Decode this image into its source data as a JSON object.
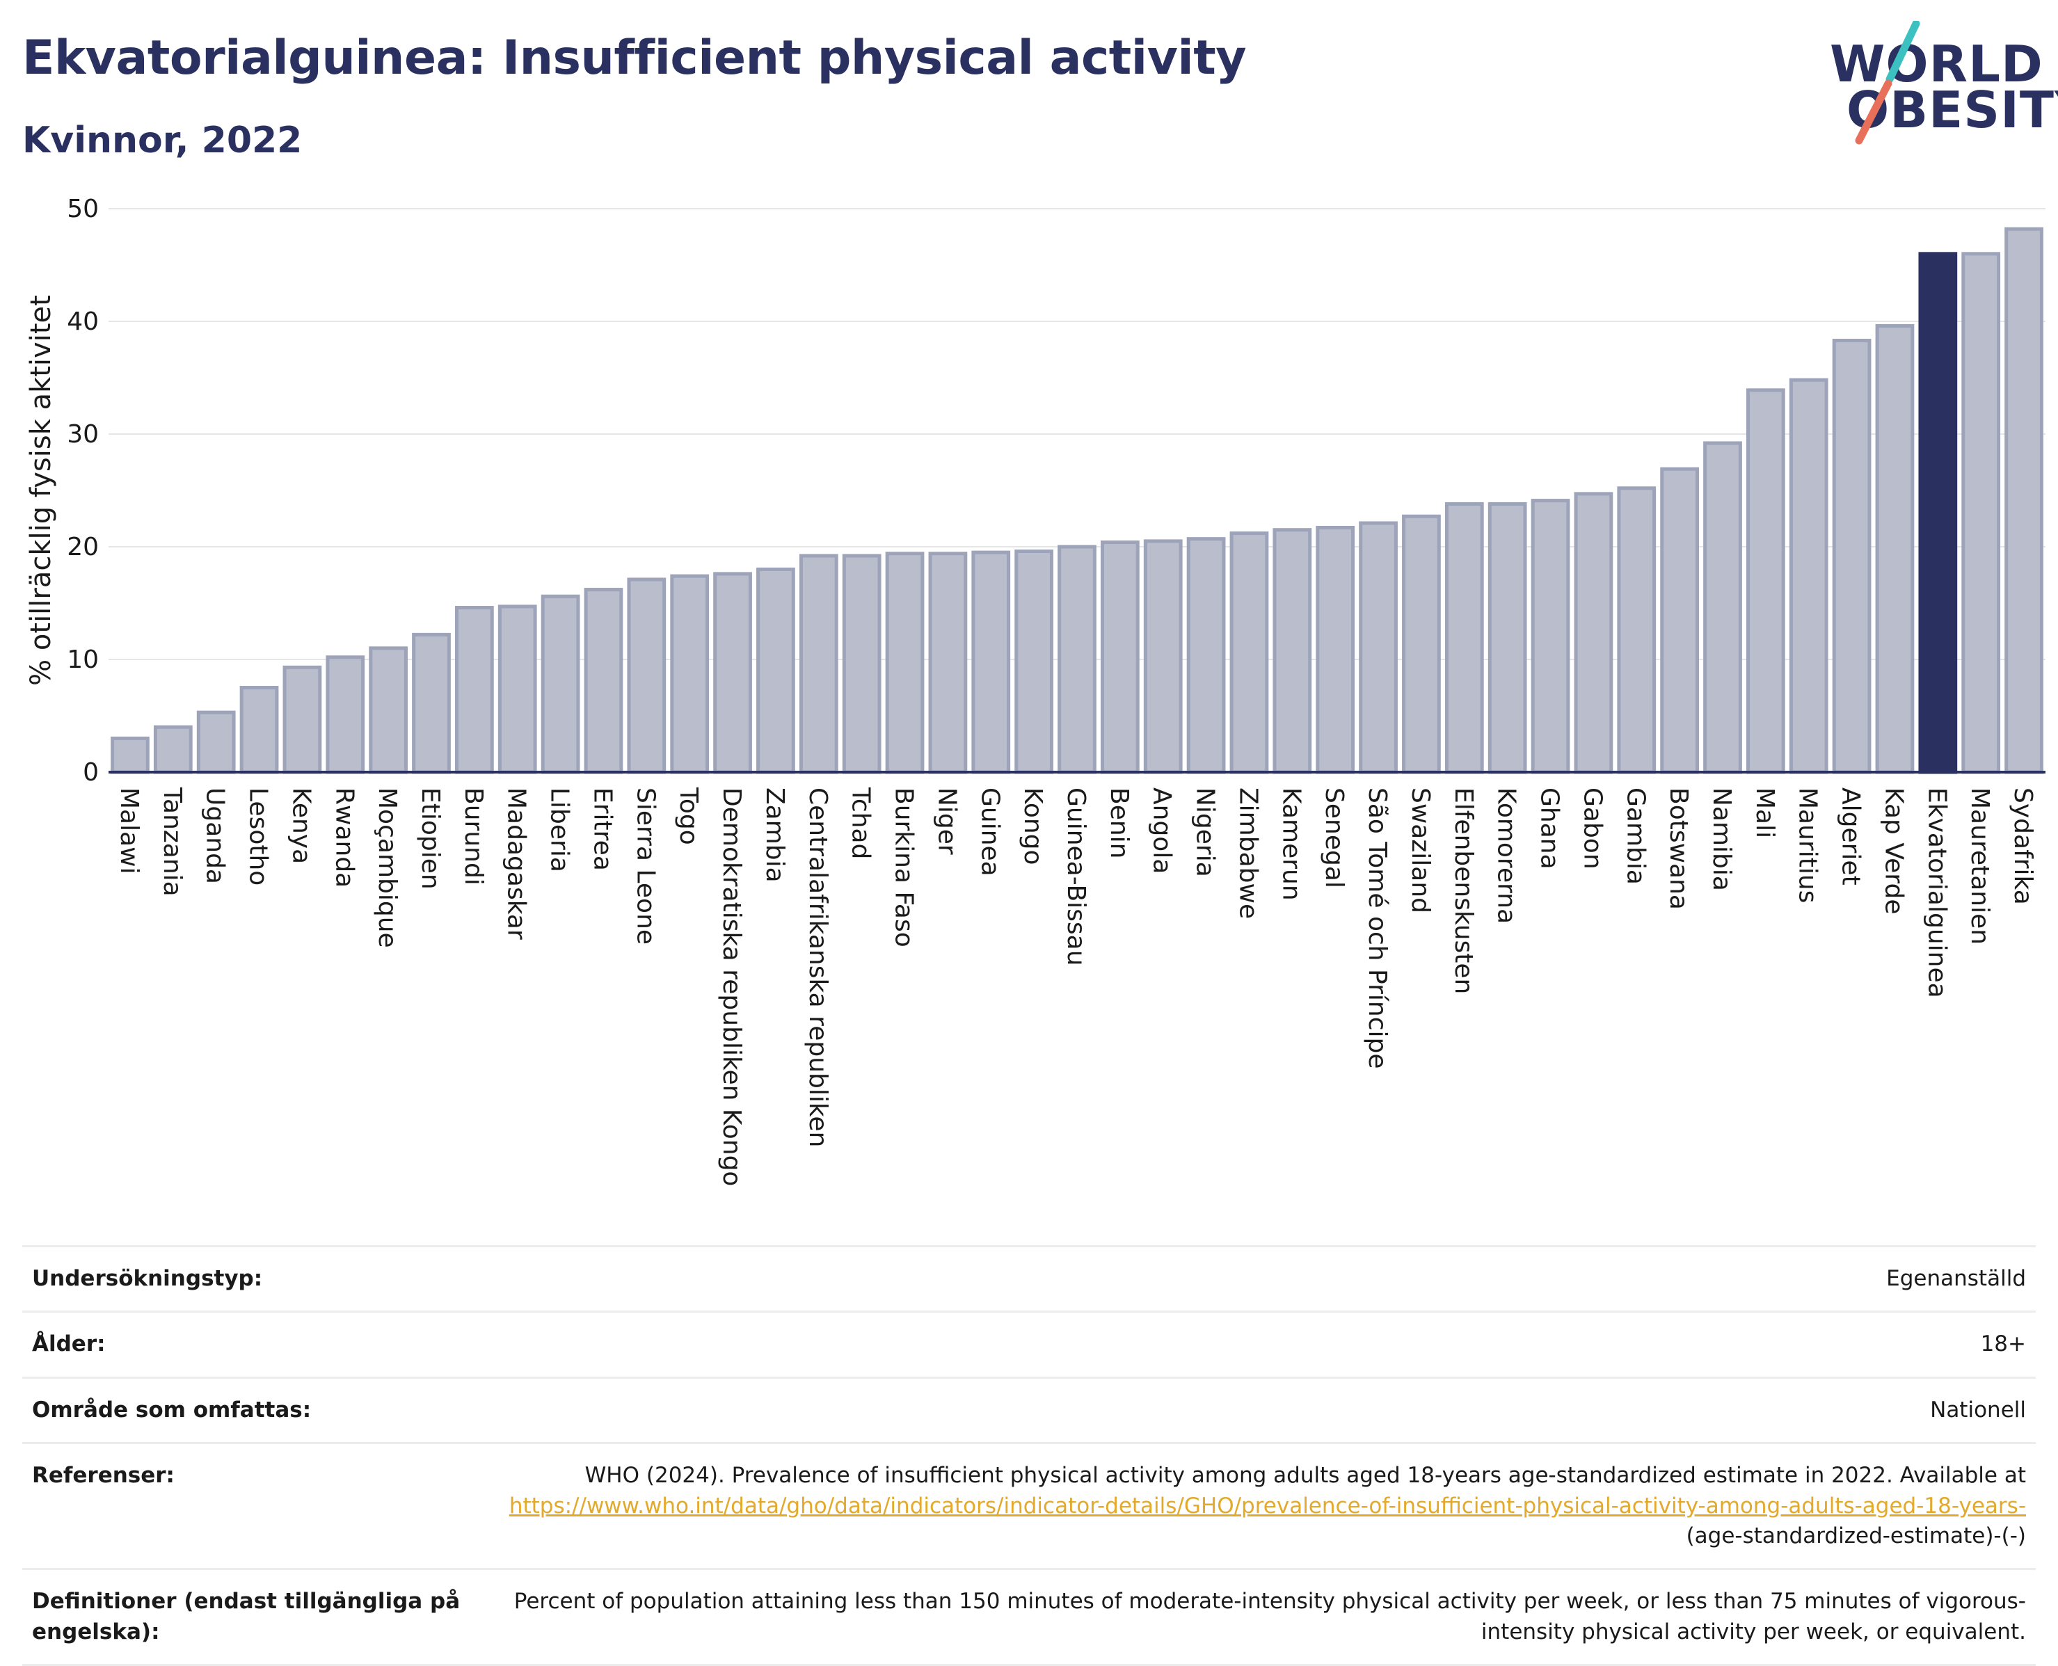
{
  "header": {
    "title": "Ekvatorialguinea: Insufficient physical activity",
    "subtitle": "Kvinnor, 2022"
  },
  "logo": {
    "line1": "WORLD",
    "line2": "OBESITY",
    "colors": {
      "text": "#2a3160",
      "slash_top": "#3cc0c0",
      "slash_bottom": "#e8705a"
    }
  },
  "chart_data": {
    "type": "bar",
    "title": "Ekvatorialguinea: Insufficient physical activity",
    "subtitle": "Kvinnor, 2022",
    "xlabel": "",
    "ylabel": "% otillräcklig fysisk aktivitet",
    "ylim": [
      0,
      50
    ],
    "yticks": [
      0,
      10,
      20,
      30,
      40,
      50
    ],
    "grid": true,
    "highlight": "Ekvatorialguinea",
    "colors": {
      "bar": "#b9bdcc",
      "bar_edge": "#9da3b8",
      "highlight": "#2a3160",
      "axis": "#2a3160",
      "grid": "#e6e6e6"
    },
    "categories": [
      "Malawi",
      "Tanzania",
      "Uganda",
      "Lesotho",
      "Kenya",
      "Rwanda",
      "Moçambique",
      "Etiopien",
      "Burundi",
      "Madagaskar",
      "Liberia",
      "Eritrea",
      "Sierra Leone",
      "Togo",
      "Demokratiska republiken Kongo",
      "Zambia",
      "Centralafrikanska republiken",
      "Tchad",
      "Burkina Faso",
      "Niger",
      "Guinea",
      "Kongo",
      "Guinea-Bissau",
      "Benin",
      "Angola",
      "Nigeria",
      "Zimbabwe",
      "Kamerun",
      "Senegal",
      "São Tomé och Príncipe",
      "Swaziland",
      "Elfenbenskusten",
      "Komorerna",
      "Ghana",
      "Gabon",
      "Gambia",
      "Botswana",
      "Namibia",
      "Mali",
      "Mauritius",
      "Algeriet",
      "Kap Verde",
      "Ekvatorialguinea",
      "Mauretanien",
      "Sydafrika"
    ],
    "values": [
      3.0,
      4.0,
      5.3,
      7.5,
      9.3,
      10.2,
      11.0,
      12.2,
      14.6,
      14.7,
      15.6,
      16.2,
      17.1,
      17.4,
      17.6,
      18.0,
      19.2,
      19.2,
      19.4,
      19.4,
      19.5,
      19.6,
      20.0,
      20.4,
      20.5,
      20.7,
      21.2,
      21.5,
      21.7,
      22.1,
      22.7,
      23.8,
      23.8,
      24.1,
      24.7,
      25.2,
      26.9,
      29.2,
      33.9,
      34.8,
      38.3,
      39.6,
      46.0,
      46.0,
      48.2
    ]
  },
  "meta": {
    "survey_type": {
      "label": "Undersökningstyp:",
      "value": "Egenanställd"
    },
    "age": {
      "label": "Ålder:",
      "value": "18+"
    },
    "coverage": {
      "label": "Område som omfattas:",
      "value": "Nationell"
    },
    "references": {
      "label": "Referenser:",
      "text": "WHO (2024). Prevalence of insufficient physical activity among adults aged 18-years age-standardized estimate in 2022. Available at",
      "link": "https://www.who.int/data/gho/data/indicators/indicator-details/GHO/prevalence-of-insufficient-physical-activity-among-adults-aged-18-years-",
      "suffix": "(age-standardized-estimate)-(-)"
    },
    "definitions": {
      "label": "Definitioner (endast tillgängliga på engelska):",
      "value": "Percent of population attaining less than 150 minutes of moderate-intensity physical activity per week, or less than 75 minutes of vigorous-intensity physical activity per week, or equivalent."
    }
  }
}
